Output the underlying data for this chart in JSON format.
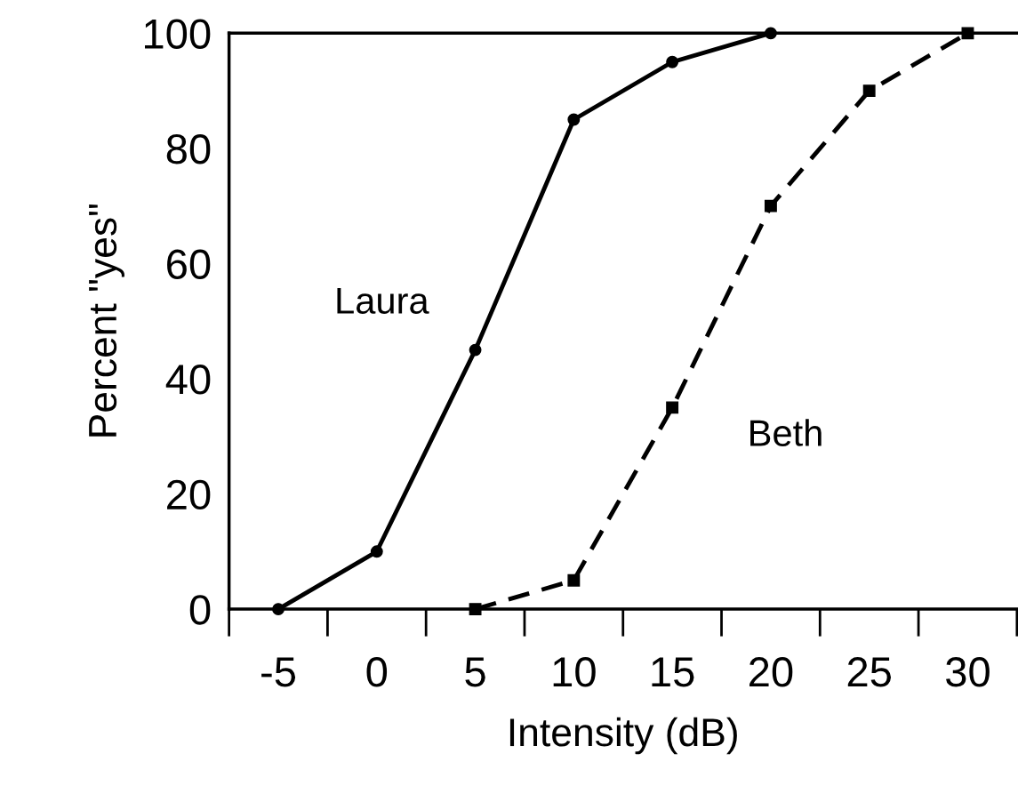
{
  "chart_data": {
    "type": "line",
    "xlabel": "Intensity (dB)",
    "ylabel": "Percent \"yes\"",
    "categories": [
      "-5",
      "0",
      "5",
      "10",
      "15",
      "20",
      "25",
      "30"
    ],
    "series": [
      {
        "name": "Laura",
        "color": "#000000",
        "marker": "circle",
        "line_style": "solid",
        "values": [
          0,
          10,
          45,
          85,
          95,
          100,
          null,
          null
        ]
      },
      {
        "name": "Beth",
        "color": "#000000",
        "marker": "square",
        "line_style": "dashed",
        "values": [
          null,
          null,
          0,
          5,
          35,
          70,
          90,
          100
        ]
      }
    ],
    "ylim": [
      0,
      100
    ],
    "yticks": [
      0,
      20,
      40,
      60,
      80,
      100
    ],
    "grid": false,
    "legend": false
  }
}
